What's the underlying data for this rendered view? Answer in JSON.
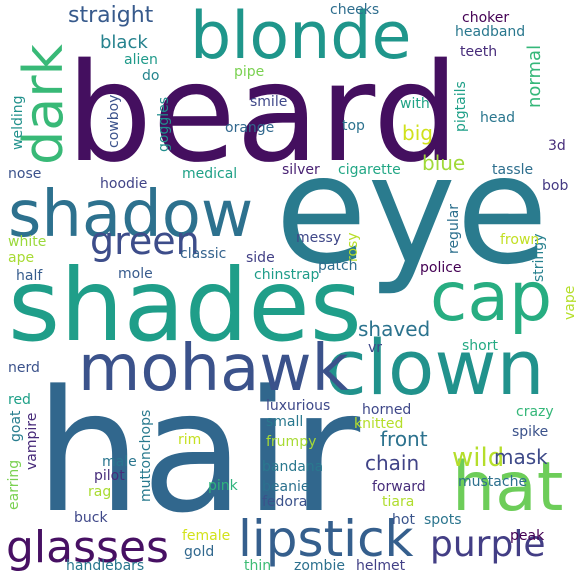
{
  "word_cloud": {
    "background": "#ffffff",
    "words": [
      {
        "text": "beard",
        "color": "#440f5f"
      },
      {
        "text": "eye",
        "color": "#2a7b8e"
      },
      {
        "text": "hair",
        "color": "#31678d"
      },
      {
        "text": "shades",
        "color": "#1f9e89"
      },
      {
        "text": "clown",
        "color": "#21928c"
      },
      {
        "text": "blonde",
        "color": "#1f968b"
      },
      {
        "text": "hat",
        "color": "#6dcd59"
      },
      {
        "text": "cap",
        "color": "#27ad81"
      },
      {
        "text": "mohawk",
        "color": "#3b528b"
      },
      {
        "text": "shadow",
        "color": "#2d718e"
      },
      {
        "text": "dark",
        "color": "#38b977"
      },
      {
        "text": "lipstick",
        "color": "#355f8d"
      },
      {
        "text": "glasses",
        "color": "#471063"
      },
      {
        "text": "purple",
        "color": "#433e85"
      },
      {
        "text": "green",
        "color": "#3d4d8a"
      },
      {
        "text": "straight",
        "color": "#375a8c"
      },
      {
        "text": "blue",
        "color": "#a0da39"
      },
      {
        "text": "wild",
        "color": "#b5de2b"
      },
      {
        "text": "mask",
        "color": "#3e4a89"
      },
      {
        "text": "chain",
        "color": "#404387"
      },
      {
        "text": "front",
        "color": "#2c728e"
      },
      {
        "text": "big",
        "color": "#d0e11c"
      },
      {
        "text": "shaved",
        "color": "#2c738e"
      },
      {
        "text": "black",
        "color": "#26828e"
      },
      {
        "text": "normal",
        "color": "#35b779"
      },
      {
        "text": "cheeks",
        "color": "#2e6e8e"
      },
      {
        "text": "choker",
        "color": "#440154"
      },
      {
        "text": "headband",
        "color": "#2a788e"
      },
      {
        "text": "teeth",
        "color": "#472c7a"
      },
      {
        "text": "alien",
        "color": "#1f9a8a"
      },
      {
        "text": "do",
        "color": "#25858e"
      },
      {
        "text": "pipe",
        "color": "#7ad151"
      },
      {
        "text": "cowboy",
        "color": "#3b528b"
      },
      {
        "text": "goggles",
        "color": "#218e8d"
      },
      {
        "text": "welding",
        "color": "#21918c"
      },
      {
        "text": "smile",
        "color": "#3f4889"
      },
      {
        "text": "orange",
        "color": "#31688e"
      },
      {
        "text": "top",
        "color": "#2c728e"
      },
      {
        "text": "pigtails",
        "color": "#1fa088"
      },
      {
        "text": "with",
        "color": "#20a386"
      },
      {
        "text": "head",
        "color": "#2a768e"
      },
      {
        "text": "3d",
        "color": "#472d7b"
      },
      {
        "text": "nose",
        "color": "#3b528b"
      },
      {
        "text": "medical",
        "color": "#1fa187"
      },
      {
        "text": "silver",
        "color": "#482173"
      },
      {
        "text": "cigarette",
        "color": "#22a785"
      },
      {
        "text": "tassle",
        "color": "#2e6f8e"
      },
      {
        "text": "hoodie",
        "color": "#414487"
      },
      {
        "text": "bob",
        "color": "#443983"
      },
      {
        "text": "white",
        "color": "#9bd93c"
      },
      {
        "text": "ape",
        "color": "#a8db34"
      },
      {
        "text": "messy",
        "color": "#3f4788"
      },
      {
        "text": "rosy",
        "color": "#b8de29"
      },
      {
        "text": "regular",
        "color": "#2d708e"
      },
      {
        "text": "stringy",
        "color": "#27808e"
      },
      {
        "text": "frown",
        "color": "#c2df23"
      },
      {
        "text": "half",
        "color": "#365c8d"
      },
      {
        "text": "mole",
        "color": "#375b8d"
      },
      {
        "text": "classic",
        "color": "#33628d"
      },
      {
        "text": "side",
        "color": "#424086"
      },
      {
        "text": "chinstrap",
        "color": "#1e9c89"
      },
      {
        "text": "patch",
        "color": "#2e6e8e"
      },
      {
        "text": "police",
        "color": "#440154"
      },
      {
        "text": "vape",
        "color": "#b5de2b"
      },
      {
        "text": "vr",
        "color": "#3f4889"
      },
      {
        "text": "short",
        "color": "#24aa83"
      },
      {
        "text": "nerd",
        "color": "#3b528b"
      },
      {
        "text": "red",
        "color": "#1fa088"
      },
      {
        "text": "luxurious",
        "color": "#3e4989"
      },
      {
        "text": "small",
        "color": "#2a788e"
      },
      {
        "text": "horned",
        "color": "#3f4889"
      },
      {
        "text": "knitted",
        "color": "#b5de2b"
      },
      {
        "text": "crazy",
        "color": "#35b779"
      },
      {
        "text": "spike",
        "color": "#3b528b"
      },
      {
        "text": "goat",
        "color": "#287d8e"
      },
      {
        "text": "rim",
        "color": "#c5e021"
      },
      {
        "text": "frumpy",
        "color": "#a8db34"
      },
      {
        "text": "vampire",
        "color": "#472a7a"
      },
      {
        "text": "muttonchops",
        "color": "#297a8e"
      },
      {
        "text": "male",
        "color": "#2a768e"
      },
      {
        "text": "pilot",
        "color": "#472d7b"
      },
      {
        "text": "mustache",
        "color": "#2d708e"
      },
      {
        "text": "earring",
        "color": "#7ad151"
      },
      {
        "text": "rag",
        "color": "#aadc32"
      },
      {
        "text": "bandana",
        "color": "#2a788e"
      },
      {
        "text": "pink",
        "color": "#2eb37c"
      },
      {
        "text": "beanie",
        "color": "#2c718e"
      },
      {
        "text": "forward",
        "color": "#472d7b"
      },
      {
        "text": "fedora",
        "color": "#3b528b"
      },
      {
        "text": "tiara",
        "color": "#b0dd2f"
      },
      {
        "text": "hot",
        "color": "#3a548c"
      },
      {
        "text": "spots",
        "color": "#2b758e"
      },
      {
        "text": "buck",
        "color": "#3f4889"
      },
      {
        "text": "female",
        "color": "#d2e21b"
      },
      {
        "text": "gold",
        "color": "#31688e"
      },
      {
        "text": "handlebars",
        "color": "#2a788e"
      },
      {
        "text": "thin",
        "color": "#3dbc74"
      },
      {
        "text": "zombie",
        "color": "#2d708e"
      },
      {
        "text": "helmet",
        "color": "#424086"
      },
      {
        "text": "peak",
        "color": "#440154"
      }
    ]
  }
}
